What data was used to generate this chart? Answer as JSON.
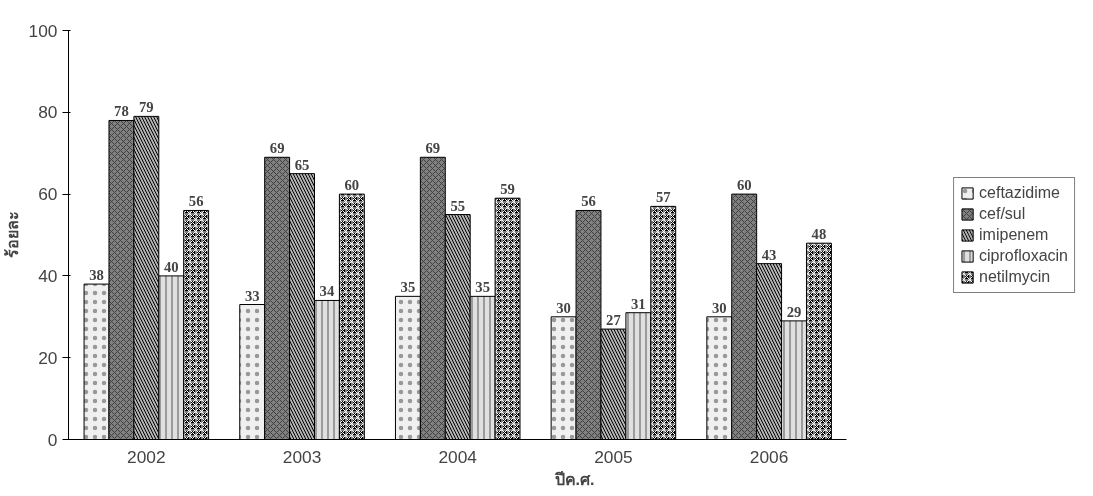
{
  "chart_data": {
    "type": "bar",
    "xlabel": "ปีค.ศ.",
    "ylabel": "ร้อยละ",
    "categories": [
      "2002",
      "2003",
      "2004",
      "2005",
      "2006"
    ],
    "series": [
      {
        "name": "ceftazidime",
        "color": "#f0f0f0",
        "values": [
          38,
          33,
          35,
          30,
          30
        ]
      },
      {
        "name": "cef/sul",
        "color": "#808080",
        "values": [
          78,
          69,
          69,
          56,
          60
        ]
      },
      {
        "name": "imipenem",
        "color": "#b3b3b3",
        "values": [
          79,
          65,
          55,
          27,
          43
        ]
      },
      {
        "name": "ciprofloxacin",
        "color": "#e0e0e0",
        "values": [
          40,
          34,
          35,
          31,
          29
        ]
      },
      {
        "name": "netilmycin",
        "color": "#000000",
        "values": [
          56,
          60,
          59,
          57,
          48
        ]
      }
    ],
    "ylim": [
      0,
      100
    ],
    "yticks": [
      0,
      20,
      40,
      60,
      80,
      100
    ],
    "grid": false,
    "legend": "right",
    "data_labels": true
  }
}
